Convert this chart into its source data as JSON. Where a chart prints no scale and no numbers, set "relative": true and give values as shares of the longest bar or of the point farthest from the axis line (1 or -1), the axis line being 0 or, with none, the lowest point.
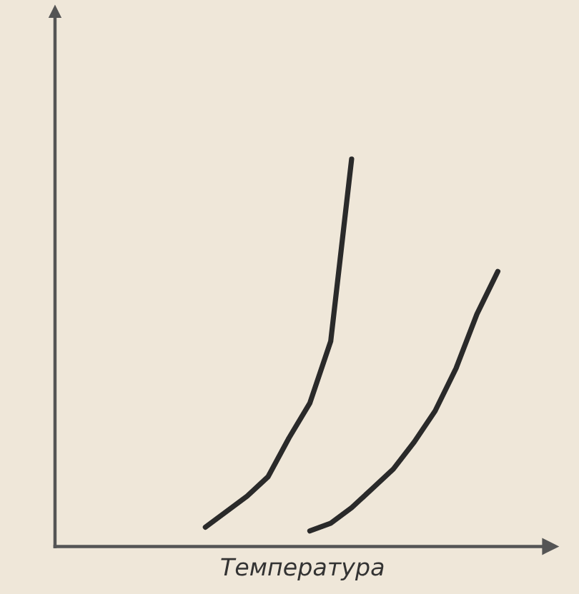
{
  "chart_data": {
    "type": "line",
    "relative": true,
    "xlabel": "Температура",
    "categories": [
      null,
      null,
      null,
      null,
      null,
      null,
      null,
      null,
      null,
      null,
      null,
      null,
      null,
      null,
      null,
      null,
      null,
      null,
      null,
      null,
      null,
      null,
      null,
      null
    ],
    "series": [
      {
        "color": "#2a2a2a",
        "values": [
          null,
          null,
          null,
          null,
          null,
          null,
          null,
          0.05,
          0.09,
          0.13,
          0.18,
          0.28,
          0.37,
          0.53,
          1,
          null,
          null,
          null,
          null,
          null,
          null,
          null,
          null,
          null
        ]
      },
      {
        "color": "#2a2a2a",
        "values": [
          null,
          null,
          null,
          null,
          null,
          null,
          null,
          null,
          null,
          null,
          null,
          null,
          0.04,
          0.06,
          0.1,
          0.15,
          0.2,
          0.27,
          0.35,
          0.46,
          0.6,
          0.71,
          null,
          null
        ]
      }
    ],
    "marker": "none",
    "line_style": "solid",
    "grid": false
  }
}
